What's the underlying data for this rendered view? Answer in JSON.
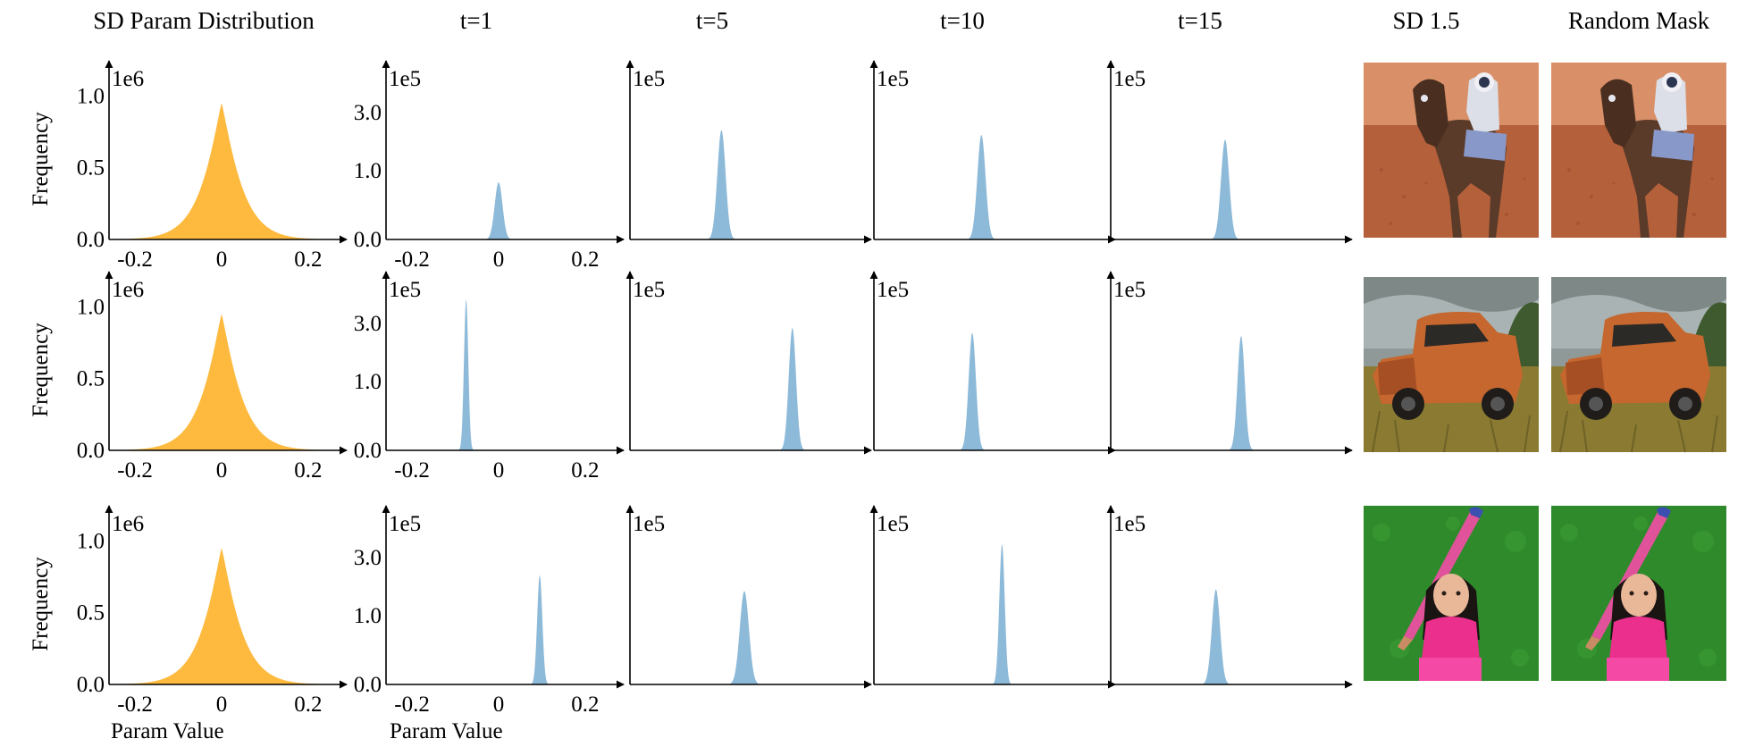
{
  "column_titles": [
    "SD Param Distribution",
    "t=1",
    "t=5",
    "t=10",
    "t=15",
    "SD 1.5",
    "Random Mask"
  ],
  "ylabel": "Frequency",
  "xlabel": "Param Value",
  "colors": {
    "orange": "#FDBA3F",
    "blue": "#8EBAD9",
    "axis": "#000000"
  },
  "images": [
    {
      "row": 1,
      "sd15": "horse-rider-mars",
      "random_mask": "horse-rider-mars"
    },
    {
      "row": 2,
      "sd15": "rusty-orange-truck-in-field",
      "random_mask": "rusty-orange-truck-in-field"
    },
    {
      "row": 3,
      "sd15": "girl-with-pink-bat-on-grass",
      "random_mask": "girl-with-pink-bat-on-grass"
    }
  ],
  "chart_data": [
    {
      "row": 1,
      "column": "SD Param Distribution",
      "type": "area",
      "color": "orange",
      "offset_label": "1e6",
      "y_ticks": [
        "0.0",
        "0.5",
        "1.0"
      ],
      "x_ticks": [
        "-0.2",
        "0",
        "0.2"
      ],
      "xlim": [
        -0.26,
        0.26
      ],
      "ylim": [
        0,
        1.12
      ],
      "peak": {
        "center": 0.0,
        "height": 0.95,
        "width": 0.045
      }
    },
    {
      "row": 1,
      "column": "t=1",
      "type": "area",
      "color": "blue",
      "offset_label": "1e5",
      "y_ticks": [
        "0.0",
        "1.0",
        "3.0"
      ],
      "x_ticks": [
        "-0.2",
        "0",
        "0.2"
      ],
      "xlim": [
        -0.26,
        0.26
      ],
      "ylim": [
        0,
        3.1
      ],
      "peak": {
        "center": 0.0,
        "height": 1.1,
        "width": 0.009
      }
    },
    {
      "row": 1,
      "column": "t=5",
      "type": "area",
      "color": "blue",
      "offset_label": "1e5",
      "peak": {
        "center": 0.4,
        "height": 0.68,
        "width": 0.018
      }
    },
    {
      "row": 1,
      "column": "t=10",
      "type": "area",
      "color": "blue",
      "offset_label": "1e5",
      "peak": {
        "center": 0.47,
        "height": 0.65,
        "width": 0.018
      }
    },
    {
      "row": 1,
      "column": "t=15",
      "type": "area",
      "color": "blue",
      "offset_label": "1e5",
      "peak": {
        "center": 0.5,
        "height": 0.62,
        "width": 0.018
      }
    },
    {
      "row": 2,
      "column": "SD Param Distribution",
      "type": "area",
      "color": "orange",
      "offset_label": "1e6",
      "y_ticks": [
        "0.0",
        "0.5",
        "1.0"
      ],
      "x_ticks": [
        "-0.2",
        "0",
        "0.2"
      ],
      "xlim": [
        -0.26,
        0.26
      ],
      "ylim": [
        0,
        1.12
      ],
      "peak": {
        "center": 0.0,
        "height": 0.95,
        "width": 0.045
      }
    },
    {
      "row": 2,
      "column": "t=1",
      "type": "area",
      "color": "blue",
      "offset_label": "1e5",
      "y_ticks": [
        "0.0",
        "1.0",
        "3.0"
      ],
      "x_ticks": [
        "-0.2",
        "0",
        "0.2"
      ],
      "xlim": [
        -0.26,
        0.26
      ],
      "ylim": [
        0,
        3.1
      ],
      "peak": {
        "center": -0.075,
        "height": 2.9,
        "width": 0.005
      }
    },
    {
      "row": 2,
      "column": "t=5",
      "type": "area",
      "color": "blue",
      "offset_label": "1e5",
      "peak": {
        "center": 0.71,
        "height": 0.76,
        "width": 0.016
      }
    },
    {
      "row": 2,
      "column": "t=10",
      "type": "area",
      "color": "blue",
      "offset_label": "1e5",
      "peak": {
        "center": 0.43,
        "height": 0.73,
        "width": 0.016
      }
    },
    {
      "row": 2,
      "column": "t=15",
      "type": "area",
      "color": "blue",
      "offset_label": "1e5",
      "peak": {
        "center": 0.57,
        "height": 0.71,
        "width": 0.016
      }
    },
    {
      "row": 3,
      "column": "SD Param Distribution",
      "type": "area",
      "color": "orange",
      "offset_label": "1e6",
      "y_ticks": [
        "0.0",
        "0.5",
        "1.0"
      ],
      "x_ticks": [
        "-0.2",
        "0",
        "0.2"
      ],
      "xlim": [
        -0.26,
        0.26
      ],
      "ylim": [
        0,
        1.12
      ],
      "peak": {
        "center": 0.0,
        "height": 0.95,
        "width": 0.045
      }
    },
    {
      "row": 3,
      "column": "t=1",
      "type": "area",
      "color": "blue",
      "offset_label": "1e5",
      "y_ticks": [
        "0.0",
        "1.0",
        "3.0"
      ],
      "x_ticks": [
        "-0.2",
        "0",
        "0.2"
      ],
      "xlim": [
        -0.26,
        0.26
      ],
      "ylim": [
        0,
        3.1
      ],
      "peak": {
        "center": 0.095,
        "height": 2.1,
        "width": 0.006
      }
    },
    {
      "row": 3,
      "column": "t=5",
      "type": "area",
      "color": "blue",
      "offset_label": "1e5",
      "peak": {
        "center": 0.5,
        "height": 0.58,
        "width": 0.02
      }
    },
    {
      "row": 3,
      "column": "t=10",
      "type": "area",
      "color": "blue",
      "offset_label": "1e5",
      "peak": {
        "center": 0.56,
        "height": 0.87,
        "width": 0.012
      }
    },
    {
      "row": 3,
      "column": "t=15",
      "type": "area",
      "color": "blue",
      "offset_label": "1e5",
      "peak": {
        "center": 0.46,
        "height": 0.59,
        "width": 0.018
      }
    }
  ]
}
